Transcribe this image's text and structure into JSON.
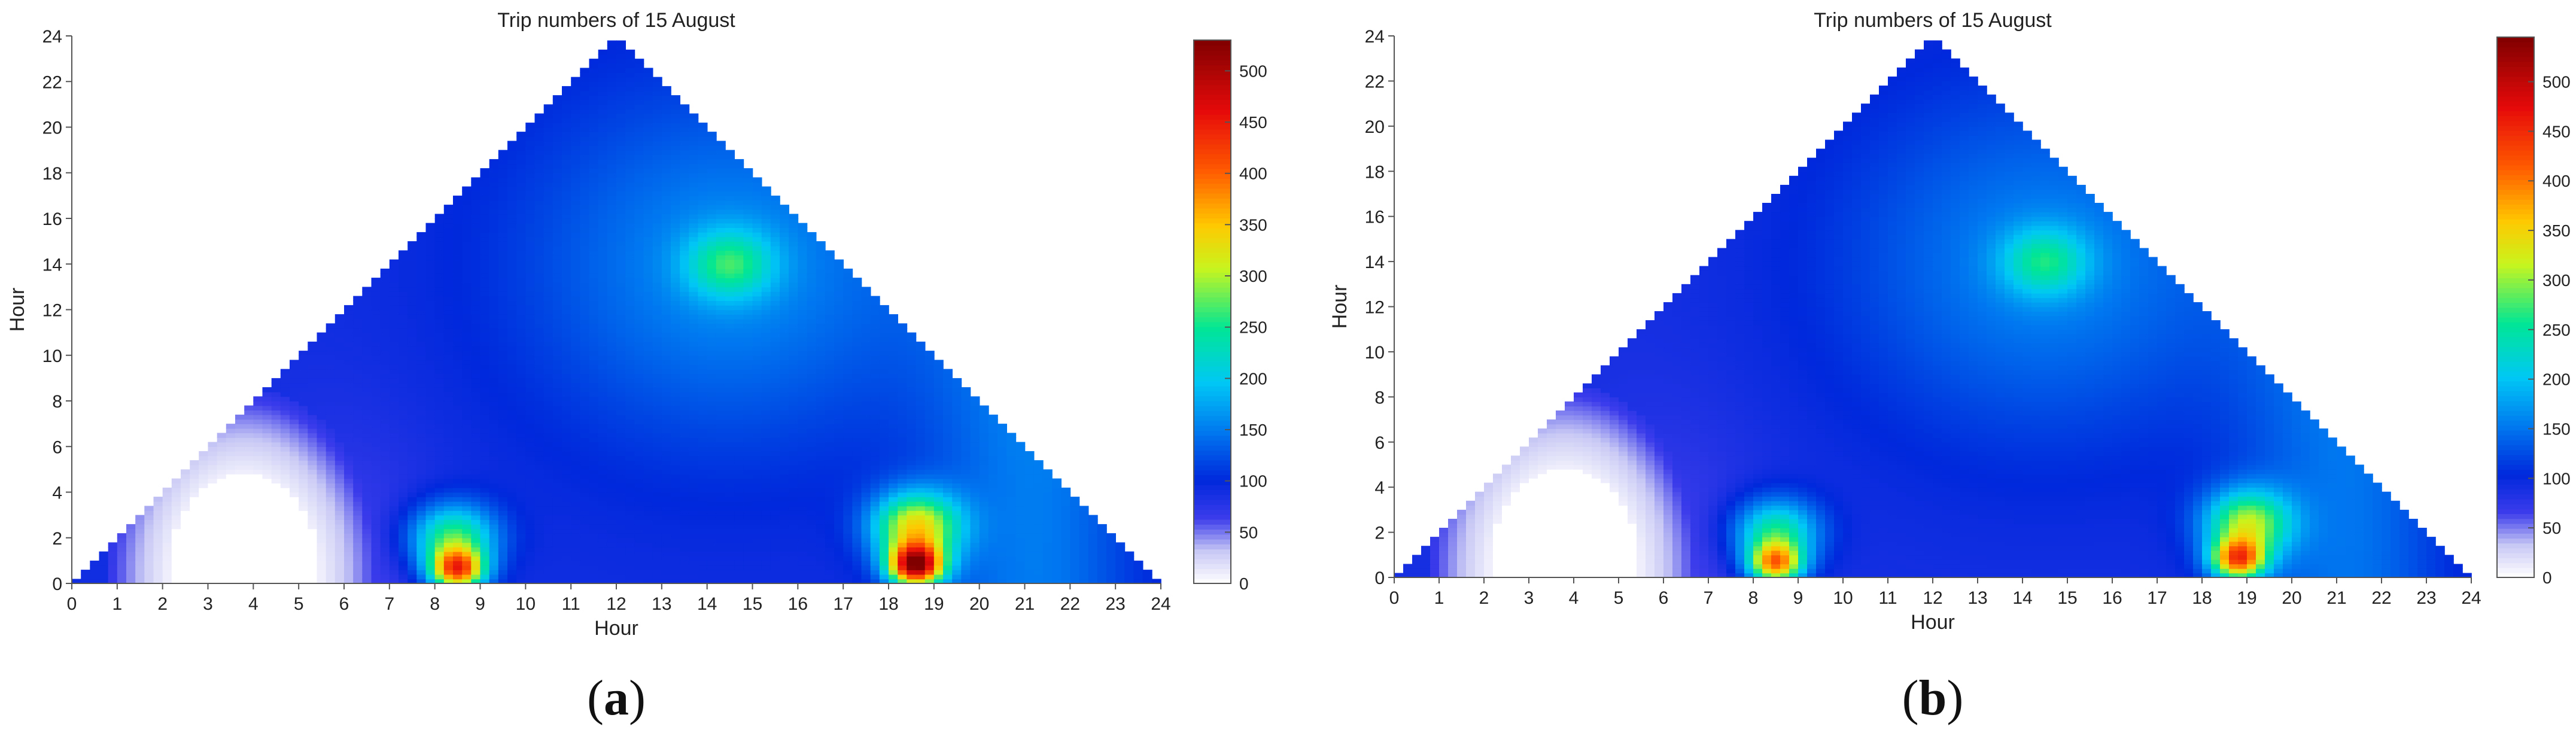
{
  "chart_data": [
    {
      "type": "heatmap",
      "panel_label": "a",
      "title": "Trip numbers of 15 August",
      "xlabel": "Hour",
      "ylabel": "Hour",
      "xlim": [
        0,
        24
      ],
      "ylim": [
        0,
        24
      ],
      "x_ticks": [
        "0",
        "1",
        "2",
        "3",
        "4",
        "5",
        "6",
        "7",
        "8",
        "9",
        "10",
        "11",
        "12",
        "13",
        "14",
        "15",
        "16",
        "17",
        "18",
        "19",
        "20",
        "21",
        "22",
        "23",
        "24"
      ],
      "y_ticks": [
        "0",
        "2",
        "4",
        "6",
        "8",
        "10",
        "12",
        "14",
        "16",
        "18",
        "20",
        "22",
        "24"
      ],
      "colorbar": {
        "min": 0,
        "max": 530,
        "ticks": [
          "0",
          "50",
          "100",
          "150",
          "200",
          "250",
          "300",
          "350",
          "400",
          "450",
          "500"
        ],
        "colormap": "white-blue-cyan-green-yellow-red-darkred"
      },
      "shape": "triangle with apex at (12, 24)",
      "hotspots": [
        {
          "x": 18.6,
          "y": 0.8,
          "value": 480
        },
        {
          "x": 8.5,
          "y": 0.6,
          "value": 390
        },
        {
          "x": 18.6,
          "y": 2.5,
          "value": 330
        },
        {
          "x": 8.4,
          "y": 2.0,
          "value": 280
        },
        {
          "x": 14.5,
          "y": 14.0,
          "value": 210
        },
        {
          "x": 3.8,
          "y": 1.8,
          "value": 0
        }
      ]
    },
    {
      "type": "heatmap",
      "panel_label": "b",
      "title": "Trip numbers of 15 August",
      "xlabel": "Hour",
      "ylabel": "Hour",
      "xlim": [
        0,
        24
      ],
      "ylim": [
        0,
        24
      ],
      "x_ticks": [
        "0",
        "1",
        "2",
        "3",
        "4",
        "5",
        "6",
        "7",
        "8",
        "9",
        "10",
        "11",
        "12",
        "13",
        "14",
        "15",
        "16",
        "17",
        "18",
        "19",
        "20",
        "21",
        "22",
        "23",
        "24"
      ],
      "y_ticks": [
        "0",
        "2",
        "4",
        "6",
        "8",
        "10",
        "12",
        "14",
        "16",
        "18",
        "20",
        "22",
        "24"
      ],
      "colorbar": {
        "min": 0,
        "max": 545,
        "ticks": [
          "0",
          "50",
          "100",
          "150",
          "200",
          "250",
          "300",
          "350",
          "400",
          "450",
          "500"
        ],
        "colormap": "white-blue-cyan-green-yellow-red-darkred"
      },
      "shape": "triangle with apex at (12, 24)",
      "hotspots": [
        {
          "x": 18.8,
          "y": 0.8,
          "value": 380
        },
        {
          "x": 8.5,
          "y": 0.6,
          "value": 360
        },
        {
          "x": 19.0,
          "y": 2.4,
          "value": 300
        },
        {
          "x": 8.5,
          "y": 2.0,
          "value": 270
        },
        {
          "x": 14.5,
          "y": 14.0,
          "value": 205
        },
        {
          "x": 3.8,
          "y": 1.8,
          "value": 0
        }
      ]
    }
  ]
}
